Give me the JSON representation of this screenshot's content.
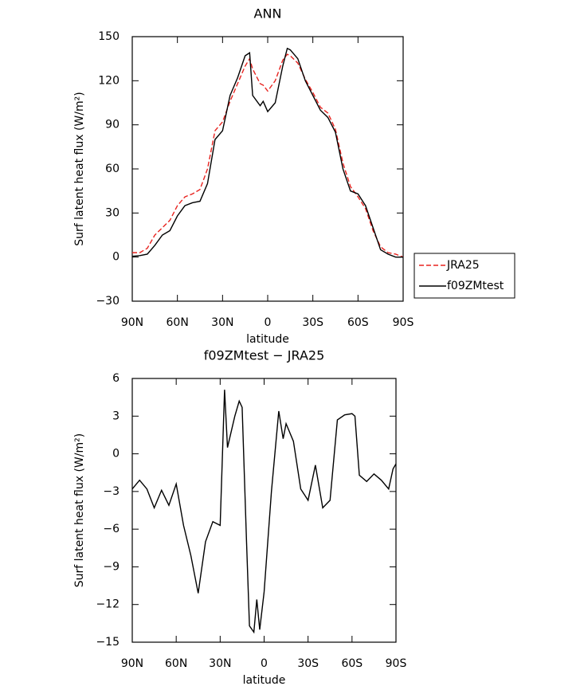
{
  "chart_data": [
    {
      "type": "line",
      "title": "ANN",
      "x_label": "latitude",
      "y_label": "Surf latent heat flux (W/m²)",
      "x": [
        90,
        85,
        80,
        75,
        70,
        65,
        60,
        55,
        50,
        45,
        40,
        35,
        30,
        25,
        20,
        15,
        12,
        10,
        5,
        3,
        0,
        -5,
        -10,
        -13,
        -15,
        -20,
        -25,
        -30,
        -35,
        -40,
        -45,
        -50,
        -55,
        -60,
        -65,
        -70,
        -75,
        -80,
        -85,
        -90
      ],
      "series": [
        {
          "name": "JRA25",
          "color": "#e8231f",
          "line_style": "dashed",
          "values": [
            3,
            3,
            6,
            15,
            20,
            25,
            35,
            41,
            43,
            46,
            60,
            86,
            92,
            106,
            118,
            130,
            135,
            128,
            118,
            117,
            113,
            120,
            134,
            138,
            137,
            132,
            121,
            112,
            102,
            98,
            87,
            64,
            48,
            41,
            33,
            18,
            7,
            3,
            2,
            0
          ]
        },
        {
          "name": "f09ZMtest",
          "color": "#000000",
          "line_style": "solid",
          "values": [
            0.5,
            1,
            2,
            8,
            15,
            18,
            28,
            35,
            37,
            38,
            50,
            80,
            86,
            110,
            122,
            137,
            139,
            110,
            103,
            106,
            99,
            105,
            130,
            142,
            141,
            135,
            120,
            110,
            100,
            95,
            85,
            60,
            45,
            43,
            35,
            20,
            5,
            2,
            0,
            0
          ]
        }
      ],
      "xlim": [
        90,
        -90
      ],
      "xticks": [
        {
          "value": 90,
          "label": "90N"
        },
        {
          "value": 60,
          "label": "60N"
        },
        {
          "value": 30,
          "label": "30N"
        },
        0,
        {
          "value": -30,
          "label": "30S"
        },
        {
          "value": -60,
          "label": "60S"
        },
        {
          "value": -90,
          "label": "90S"
        }
      ],
      "ylim": [
        -30,
        150
      ],
      "yticks": [
        {
          "value": -30,
          "label": "−30"
        },
        0,
        30,
        60,
        90,
        120,
        150
      ],
      "legend": "right"
    },
    {
      "type": "line",
      "title": "f09ZMtest − JRA25",
      "x_label": "latitude",
      "y_label": "Surf latent heat flux (W/m²)",
      "x": [
        90,
        85,
        80,
        75,
        70,
        65,
        60,
        55,
        50,
        45,
        40,
        35,
        30,
        27,
        25,
        20,
        17,
        15,
        12,
        10,
        7,
        5,
        3,
        0,
        -5,
        -10,
        -13,
        -15,
        -20,
        -25,
        -30,
        -35,
        -40,
        -45,
        -50,
        -55,
        -60,
        -62,
        -65,
        -70,
        -75,
        -80,
        -85,
        -88,
        -90
      ],
      "series": [
        {
          "color": "#000000",
          "values": [
            -2.8,
            -2.1,
            -2.8,
            -4.3,
            -2.9,
            -4.1,
            -2.4,
            -5.7,
            -8.1,
            -11.1,
            -7,
            -5.4,
            -5.7,
            5.1,
            0.5,
            3,
            4.2,
            3.7,
            -7,
            -13.7,
            -14.2,
            -11.6,
            -14,
            -11,
            -3,
            3.4,
            1.2,
            2.4,
            1,
            -2.8,
            -3.7,
            -0.9,
            -4.3,
            -3.7,
            2.7,
            3.1,
            3.2,
            3,
            -1.7,
            -2.2,
            -1.6,
            -2.1,
            -2.8,
            -1.2,
            -0.8
          ]
        }
      ],
      "xlim": [
        90,
        -90
      ],
      "xticks": [
        {
          "value": 90,
          "label": "90N"
        },
        {
          "value": 60,
          "label": "60N"
        },
        {
          "value": 30,
          "label": "30N"
        },
        0,
        {
          "value": -30,
          "label": "30S"
        },
        {
          "value": -60,
          "label": "60S"
        },
        {
          "value": -90,
          "label": "90S"
        }
      ],
      "ylim": [
        -15,
        6
      ],
      "yticks": [
        {
          "value": -15,
          "label": "−15"
        },
        {
          "value": -12,
          "label": "−12"
        },
        {
          "value": -9,
          "label": "−9"
        },
        {
          "value": -6,
          "label": "−6"
        },
        {
          "value": -3,
          "label": "−3"
        },
        0,
        3,
        6
      ]
    }
  ]
}
